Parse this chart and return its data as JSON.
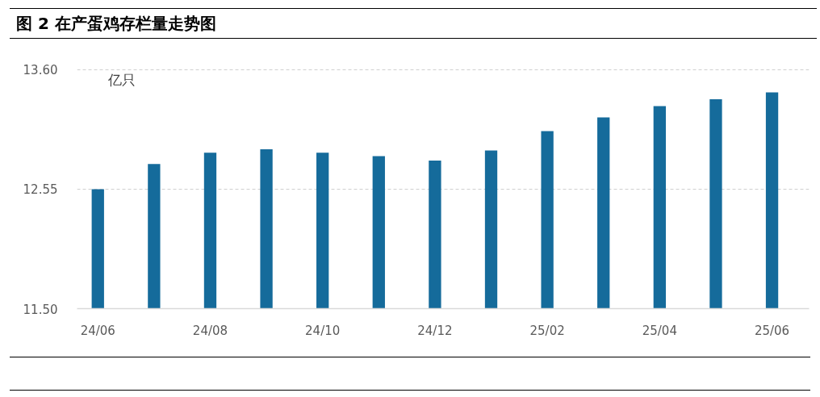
{
  "chart_data": {
    "type": "bar",
    "title": "图 2 在产蛋鸡存栏量走势图",
    "ylabel": "亿只",
    "categories": [
      "24/06",
      null,
      "24/08",
      null,
      "24/10",
      null,
      "24/12",
      null,
      "25/02",
      null,
      "25/04",
      null,
      "25/06"
    ],
    "values": [
      12.55,
      12.77,
      12.87,
      12.9,
      12.87,
      12.84,
      12.8,
      12.89,
      13.06,
      13.18,
      13.28,
      13.34,
      13.4
    ],
    "color": "#156b9b",
    "ylim": [
      11.5,
      13.6
    ],
    "yticks": [
      {
        "value": 11.5,
        "label": "11.50"
      },
      12.55,
      {
        "value": 13.6,
        "label": "13.60"
      }
    ],
    "grid": "y"
  }
}
